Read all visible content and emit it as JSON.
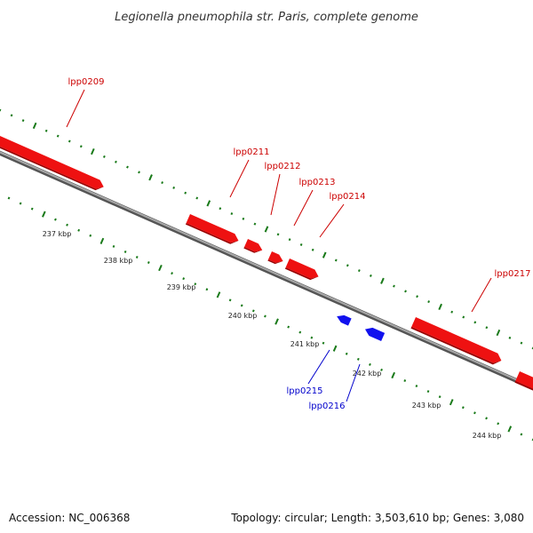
{
  "title": "Legionella pneumophila str. Paris, complete genome",
  "footer": {
    "accession": "Accession: NC_006368",
    "summary": "Topology: circular; Length: 3,503,610 bp; Genes: 3,080"
  },
  "colors": {
    "forward_gene": "#ee1111",
    "reverse_gene": "#1111ee",
    "forward_label": "#cc0000",
    "reverse_label": "#0000cc",
    "backbone": "#808080",
    "tick": "#1a7a1a"
  },
  "ticks": [
    {
      "label": "237 kbp"
    },
    {
      "label": "238 kbp"
    },
    {
      "label": "239 kbp"
    },
    {
      "label": "240 kbp"
    },
    {
      "label": "241 kbp"
    },
    {
      "label": "242 kbp"
    },
    {
      "label": "243 kbp"
    },
    {
      "label": "244 kbp"
    }
  ],
  "forward_genes": [
    {
      "label": "lpp0209"
    },
    {
      "label": "lpp0211"
    },
    {
      "label": "lpp0212"
    },
    {
      "label": "lpp0213"
    },
    {
      "label": "lpp0214"
    },
    {
      "label": "lpp0217"
    }
  ],
  "reverse_genes": [
    {
      "label": "lpp0215"
    },
    {
      "label": "lpp0216"
    }
  ]
}
